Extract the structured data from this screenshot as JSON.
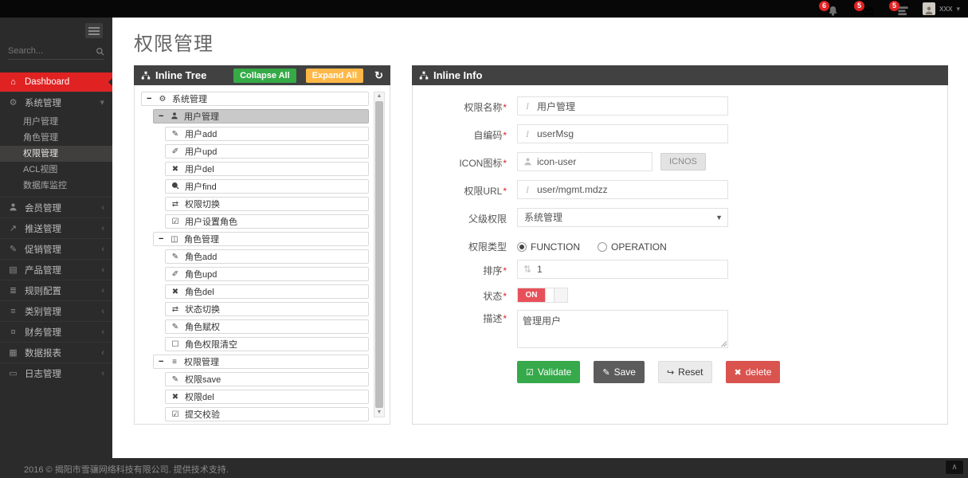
{
  "topbar": {
    "notifications": [
      {
        "icon": "bell-icon",
        "count": "6"
      },
      {
        "icon": "envelope-icon",
        "count": "5"
      },
      {
        "icon": "tasks-icon",
        "count": "5"
      }
    ],
    "user": {
      "name": "xxx"
    }
  },
  "sidebar": {
    "search_placeholder": "Search...",
    "items": [
      {
        "label": "Dashboard",
        "icon": "home-icon",
        "active": true
      },
      {
        "label": "系统管理",
        "icon": "gears-icon",
        "expanded": true,
        "children": [
          "用户管理",
          "角色管理",
          "权限管理",
          "ACL视图",
          "数据库监控"
        ],
        "active_child": "权限管理"
      },
      {
        "label": "会员管理",
        "icon": "user-icon"
      },
      {
        "label": "推送管理",
        "icon": "send-icon"
      },
      {
        "label": "促销管理",
        "icon": "promo-icon"
      },
      {
        "label": "产品管理",
        "icon": "product-icon"
      },
      {
        "label": "规则配置",
        "icon": "rules-icon"
      },
      {
        "label": "类别管理",
        "icon": "category-icon"
      },
      {
        "label": "财务管理",
        "icon": "finance-icon"
      },
      {
        "label": "数据报表",
        "icon": "report-icon"
      },
      {
        "label": "日志管理",
        "icon": "log-icon"
      }
    ]
  },
  "page": {
    "title": "权限管理"
  },
  "tree_panel": {
    "title": "Inline Tree",
    "collapse_all_label": "Collapse All",
    "expand_all_label": "Expand All",
    "nodes": [
      {
        "label": "系统管理",
        "level": 0,
        "icon": "gears-icon",
        "toggle": "-"
      },
      {
        "label": "用户管理",
        "level": 1,
        "icon": "user-icon",
        "toggle": "-",
        "selected": true
      },
      {
        "label": "用户add",
        "level": 2,
        "icon": "pencil-icon"
      },
      {
        "label": "用户upd",
        "level": 2,
        "icon": "edit-icon"
      },
      {
        "label": "用户del",
        "level": 2,
        "icon": "x-icon"
      },
      {
        "label": "用户find",
        "level": 2,
        "icon": "search-icon"
      },
      {
        "label": "权限切换",
        "level": 2,
        "icon": "retweet-icon"
      },
      {
        "label": "用户设置角色",
        "level": 2,
        "icon": "check-square-icon"
      },
      {
        "label": "角色管理",
        "level": 1,
        "icon": "sitemap-icon",
        "toggle": "-"
      },
      {
        "label": "角色add",
        "level": 2,
        "icon": "pencil-icon"
      },
      {
        "label": "角色upd",
        "level": 2,
        "icon": "edit-icon"
      },
      {
        "label": "角色del",
        "level": 2,
        "icon": "x-icon"
      },
      {
        "label": "状态切换",
        "level": 2,
        "icon": "retweet-icon"
      },
      {
        "label": "角色赋权",
        "level": 2,
        "icon": "pencil-icon"
      },
      {
        "label": "角色权限清空",
        "level": 2,
        "icon": "square-icon"
      },
      {
        "label": "权限管理",
        "level": 1,
        "icon": "list-icon",
        "toggle": "-"
      },
      {
        "label": "权限save",
        "level": 2,
        "icon": "pencil-icon"
      },
      {
        "label": "权限del",
        "level": 2,
        "icon": "x-icon"
      },
      {
        "label": "提交校验",
        "level": 2,
        "icon": "check-square-icon"
      }
    ]
  },
  "info_panel": {
    "title": "Inline Info",
    "fields": {
      "name": {
        "label": "权限名称",
        "required": "*",
        "value": "用户管理"
      },
      "code": {
        "label": "自编码",
        "required": "*",
        "value": "userMsg"
      },
      "icon": {
        "label": "ICON图标",
        "required": "*",
        "value": "icon-user",
        "button_label": "ICNOS"
      },
      "url": {
        "label": "权限URL",
        "required": "*",
        "value": "user/mgmt.mdzz"
      },
      "parent": {
        "label": "父级权限",
        "value": "系统管理"
      },
      "type": {
        "label": "权限类型",
        "option1": "FUNCTION",
        "option2": "OPERATION",
        "selected": "FUNCTION"
      },
      "sort": {
        "label": "排序",
        "required": "*",
        "value": "1"
      },
      "status": {
        "label": "状态",
        "required": "*",
        "value": "ON"
      },
      "desc": {
        "label": "描述",
        "required": "*",
        "value": "管理用户"
      }
    },
    "buttons": {
      "validate_label": "Validate",
      "save_label": "Save",
      "reset_label": "Reset",
      "delete_label": "delete"
    }
  },
  "footer": {
    "copyright": "2016 © 揭阳市雪骧网络科技有限公司. 提供技术支持."
  },
  "colors": {
    "accent_red": "#e02222",
    "green": "#35aa47",
    "orange": "#ffb848",
    "delete_red": "#d9534f",
    "switch_on_red": "#e7505a",
    "panel_header": "#414141",
    "sidebar_bg": "#2b2b2b"
  }
}
